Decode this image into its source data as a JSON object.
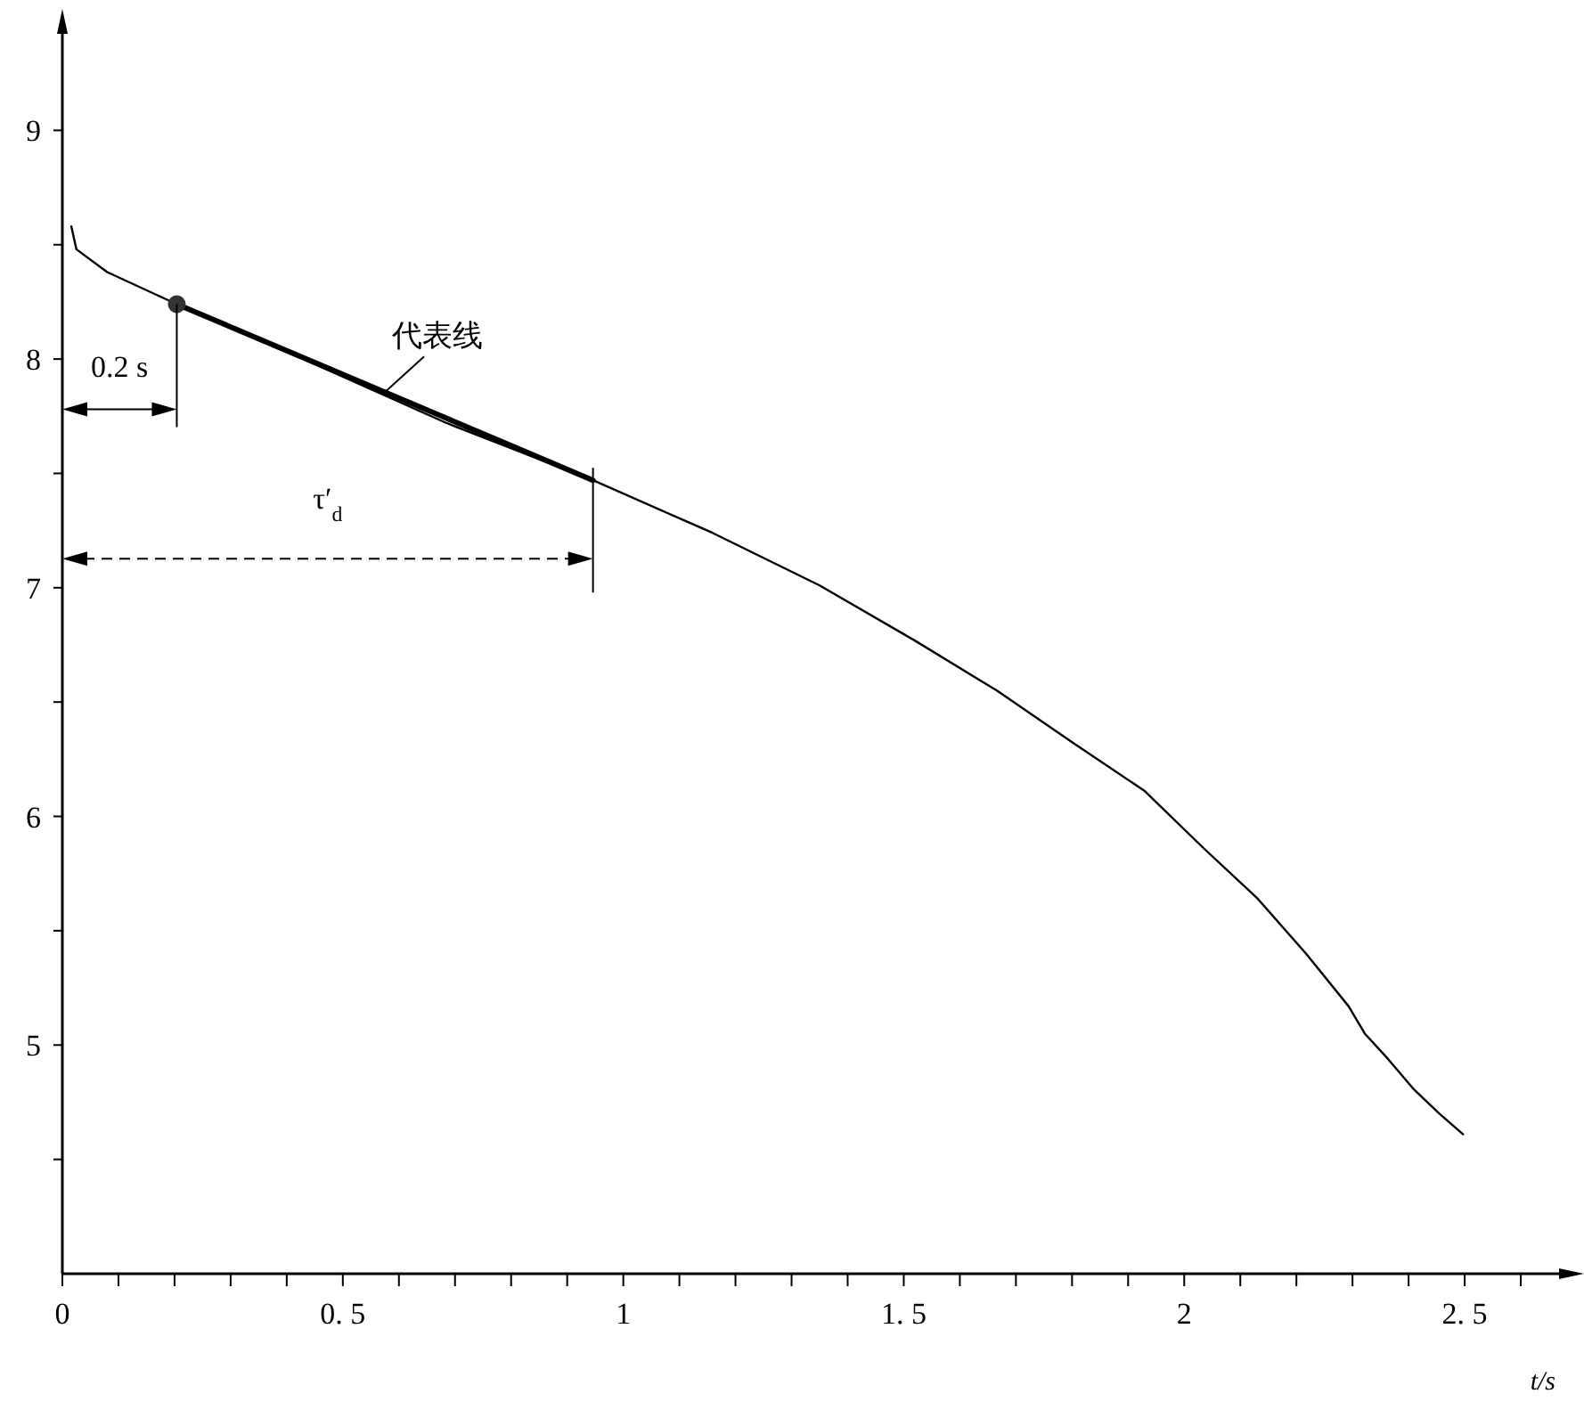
{
  "chart_data": {
    "type": "line",
    "xlabel": "t/s",
    "xlim": [
      0,
      2.7
    ],
    "xticks": [
      0,
      {
        "value": 0.1,
        "label": null
      },
      {
        "value": 0.2,
        "label": null
      },
      {
        "value": 0.3,
        "label": null
      },
      {
        "value": 0.4,
        "label": null
      },
      {
        "value": 0.5,
        "label": "0. 5"
      },
      {
        "value": 0.6,
        "label": null
      },
      {
        "value": 0.7,
        "label": null
      },
      {
        "value": 0.8,
        "label": null
      },
      {
        "value": 0.9,
        "label": null
      },
      1,
      {
        "value": 1.1,
        "label": null
      },
      {
        "value": 1.2,
        "label": null
      },
      {
        "value": 1.3,
        "label": null
      },
      {
        "value": 1.4,
        "label": null
      },
      {
        "value": 1.5,
        "label": "1. 5"
      },
      {
        "value": 1.6,
        "label": null
      },
      {
        "value": 1.7,
        "label": null
      },
      {
        "value": 1.8,
        "label": null
      },
      {
        "value": 1.9,
        "label": null
      },
      2,
      {
        "value": 2.1,
        "label": null
      },
      {
        "value": 2.2,
        "label": null
      },
      {
        "value": 2.3,
        "label": null
      },
      {
        "value": 2.4,
        "label": null
      },
      {
        "value": 2.5,
        "label": "2. 5"
      },
      {
        "value": 2.6,
        "label": null
      }
    ],
    "ylim": [
      4,
      9.5
    ],
    "yticks": [
      {
        "value": 4.5,
        "label": null
      },
      5,
      {
        "value": 5.5,
        "label": null
      },
      6,
      {
        "value": 6.5,
        "label": null
      },
      7,
      {
        "value": 7.5,
        "label": null
      },
      8,
      {
        "value": 8.5,
        "label": null
      },
      9
    ],
    "grid": false,
    "marker": "none",
    "line_style": "solid",
    "series": [
      {
        "color": "#000000",
        "x": [
          0.016,
          0.025,
          0.08,
          0.204,
          0.42,
          0.685,
          0.946,
          1.159,
          1.35,
          1.519,
          1.666,
          1.803,
          1.93,
          2.035,
          2.131,
          2.217,
          2.293,
          2.322,
          2.363,
          2.408,
          2.455,
          2.497
        ],
        "values": [
          8.58,
          8.48,
          8.38,
          8.24,
          8.01,
          7.72,
          7.47,
          7.24,
          7.01,
          6.77,
          6.55,
          6.32,
          6.11,
          5.86,
          5.64,
          5.4,
          5.17,
          5.05,
          4.94,
          4.81,
          4.7,
          4.61
        ]
      },
      {
        "type": "line",
        "name": "代表线",
        "color": "#000000",
        "x": [
          0.204,
          0.946
        ],
        "values": [
          8.24,
          7.47
        ]
      },
      {
        "type": "scatter",
        "marker": "circle",
        "color": "#333333",
        "x": [
          0.204
        ],
        "values": [
          8.24
        ]
      }
    ],
    "annotations": [
      "0.2 s",
      "τ′$_{d}$"
    ]
  }
}
